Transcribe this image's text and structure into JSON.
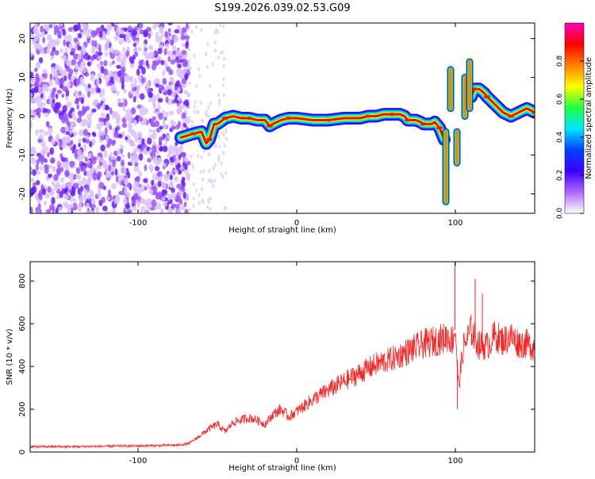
{
  "figure": {
    "title": "S199.2026.039.02.53.G09"
  },
  "chart_data": [
    {
      "type": "heatmap",
      "xlabel": "Height of straight line (km)",
      "ylabel": "Frequency (Hz)",
      "xlim": [
        -168,
        150
      ],
      "ylim": [
        -25,
        24
      ],
      "x_ticks": [
        -100,
        0,
        100
      ],
      "x_tick_labels": [
        "-100",
        "0",
        "100"
      ],
      "y_ticks": [
        -20,
        -10,
        0,
        10,
        20
      ],
      "y_tick_labels": [
        "-20",
        "-10",
        "0",
        "10",
        "20"
      ],
      "noise_region_x": [
        -168,
        -68
      ],
      "ridge": {
        "x": [
          -73,
          -65,
          -60,
          -57,
          -55,
          -52,
          -50,
          -45,
          -40,
          -35,
          -30,
          -25,
          -20,
          -17,
          -15,
          -10,
          -5,
          0,
          10,
          20,
          30,
          40,
          45,
          50,
          55,
          60,
          65,
          68,
          70,
          75,
          78,
          80,
          85,
          87,
          90,
          92,
          93
        ],
        "y": [
          -5.5,
          -4.5,
          -4,
          -7,
          -6,
          -2,
          -2,
          -0.5,
          0,
          -0.5,
          -0.5,
          -1,
          -1,
          -2.5,
          -2,
          -1,
          -0.5,
          -0.5,
          -1,
          -1,
          -0.5,
          -0.5,
          0,
          0,
          0.5,
          0.5,
          0.5,
          0,
          -1,
          -1,
          -1.5,
          -2,
          -2,
          -1.5,
          -3,
          -5,
          -6
        ]
      },
      "ridge_right": {
        "x": [
          110,
          112,
          115,
          118,
          120,
          125,
          130,
          135,
          140,
          145,
          150
        ],
        "y": [
          5,
          7,
          7,
          6,
          5,
          3,
          1,
          0,
          1,
          2,
          1
        ]
      },
      "colorbar": {
        "label": "Normalized spectral amplitude",
        "range": [
          0,
          1
        ],
        "ticks": [
          0,
          0.2,
          0.4,
          0.6,
          0.8
        ],
        "tick_labels": [
          "0.0",
          "0.2",
          "0.4",
          "0.6",
          "0.8"
        ],
        "colors": [
          "#ffffff",
          "#b066ff",
          "#3a00ff",
          "#0040ff",
          "#00e5ff",
          "#20ff40",
          "#ffff00",
          "#ff8000",
          "#ff0000",
          "#ff00c0"
        ]
      }
    },
    {
      "type": "line",
      "xlabel": "Height of straight line (km)",
      "ylabel": "SNR (10 * v/v)",
      "xlim": [
        -168,
        150
      ],
      "ylim": [
        0,
        890
      ],
      "x_ticks": [
        -100,
        0,
        100
      ],
      "x_tick_labels": [
        "-100",
        "0",
        "100"
      ],
      "y_ticks": [
        0,
        200,
        400,
        600,
        800
      ],
      "y_tick_labels": [
        "0",
        "200",
        "400",
        "600",
        "800"
      ],
      "series": [
        {
          "color": "#ff2020",
          "x": [
            -168,
            -140,
            -110,
            -90,
            -75,
            -68,
            -62,
            -55,
            -50,
            -45,
            -40,
            -35,
            -30,
            -25,
            -20,
            -15,
            -10,
            -5,
            0,
            10,
            20,
            30,
            40,
            50,
            60,
            70,
            80,
            90,
            95,
            98,
            100,
            102,
            105,
            110,
            115,
            120,
            125,
            130,
            135,
            140,
            145,
            150
          ],
          "y": [
            25,
            25,
            28,
            30,
            32,
            40,
            70,
            110,
            130,
            95,
            140,
            150,
            160,
            150,
            130,
            175,
            200,
            165,
            190,
            245,
            290,
            330,
            370,
            410,
            435,
            470,
            505,
            525,
            540,
            520,
            580,
            300,
            490,
            570,
            500,
            495,
            545,
            520,
            540,
            510,
            505,
            490
          ]
        }
      ]
    }
  ]
}
